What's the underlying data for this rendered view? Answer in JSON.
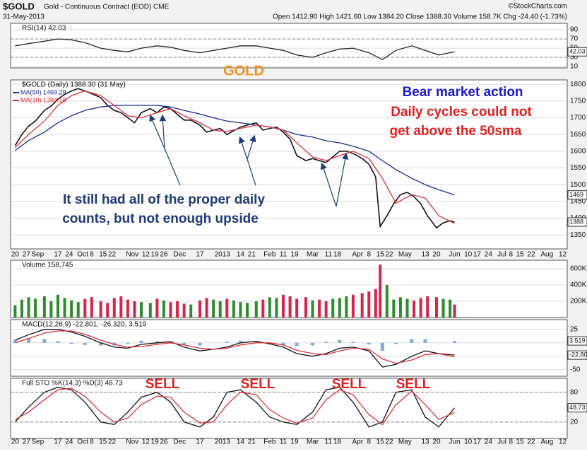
{
  "header": {
    "symbol": "$GOLD",
    "name": "Gold - Continuous Contract (EOD) CME",
    "date": "31-May-2013",
    "quote": "Open 1412.90 High 1421.60 Low 1384.20 Close 1388.30 Volume 158.7K Chg -24.40 (-1.73%)",
    "credit": "©StockCharts.com"
  },
  "chart_data": [
    {
      "type": "line",
      "title": "RSI(14) 42.03",
      "ylim": [
        7,
        104
      ],
      "yticks": [
        90,
        70,
        50,
        30,
        10
      ],
      "ref_lines": [
        70,
        30
      ],
      "x": [
        0,
        6,
        13,
        19,
        25,
        31,
        38,
        44,
        50,
        56,
        63,
        69,
        75,
        82,
        88,
        94,
        100,
        107,
        113,
        119,
        125,
        132,
        138,
        144,
        150,
        157,
        163,
        169,
        176,
        182,
        188,
        195
      ],
      "series": [
        {
          "name": "RSI(14)",
          "color": "#222222",
          "end_label": "42.03",
          "values": [
            55,
            60,
            65,
            70,
            68,
            62,
            50,
            45,
            42,
            50,
            55,
            52,
            45,
            40,
            45,
            50,
            55,
            55,
            50,
            45,
            35,
            30,
            40,
            48,
            50,
            40,
            25,
            45,
            55,
            45,
            35,
            42.03
          ]
        }
      ],
      "annotations": [
        {
          "text": "GOLD",
          "color": "#f0921e"
        }
      ]
    },
    {
      "type": "line",
      "title": "$GOLD (Daily) 1388.30 (31 May)",
      "ylim": [
        1308,
        1813
      ],
      "yticks": [
        1800,
        1750,
        1700,
        1650,
        1600,
        1550,
        1500,
        1450,
        1400,
        1350
      ],
      "xlim": [
        -2,
        245
      ],
      "xticks": [
        {
          "value": 0,
          "label": "20"
        },
        {
          "value": 5,
          "label": "27"
        },
        {
          "value": 10,
          "label": "Sep"
        },
        {
          "value": 19,
          "label": "17"
        },
        {
          "value": 24,
          "label": "24"
        },
        {
          "value": 30,
          "label": "Oct"
        },
        {
          "value": 34,
          "label": "8"
        },
        {
          "value": 39,
          "label": "15"
        },
        {
          "value": 43,
          "label": "22"
        },
        {
          "value": 52,
          "label": "Nov"
        },
        {
          "value": 58,
          "label": "12"
        },
        {
          "value": 62,
          "label": "19"
        },
        {
          "value": 66,
          "label": "26"
        },
        {
          "value": 73,
          "label": "Dec"
        },
        {
          "value": 82,
          "label": "17"
        },
        {
          "value": 92,
          "label": "2013"
        },
        {
          "value": 100,
          "label": "14"
        },
        {
          "value": 105,
          "label": "21"
        },
        {
          "value": 113,
          "label": "Feb"
        },
        {
          "value": 119,
          "label": "11"
        },
        {
          "value": 124,
          "label": "19"
        },
        {
          "value": 132,
          "label": "Mar"
        },
        {
          "value": 139,
          "label": "11"
        },
        {
          "value": 143,
          "label": "18"
        },
        {
          "value": 152,
          "label": "Apr"
        },
        {
          "value": 157,
          "label": "8"
        },
        {
          "value": 162,
          "label": "15"
        },
        {
          "value": 166,
          "label": "22"
        },
        {
          "value": 173,
          "label": "May"
        },
        {
          "value": 182,
          "label": "13"
        },
        {
          "value": 187,
          "label": "20"
        },
        {
          "value": 195,
          "label": "Jun"
        },
        {
          "value": 201,
          "label": "10"
        },
        {
          "value": 205,
          "label": "17"
        },
        {
          "value": 210,
          "label": "24"
        },
        {
          "value": 216,
          "label": "Jul"
        },
        {
          "value": 220,
          "label": "8"
        },
        {
          "value": 224,
          "label": "15"
        },
        {
          "value": 229,
          "label": "22"
        },
        {
          "value": 236,
          "label": "Aug"
        },
        {
          "value": 243,
          "label": "12"
        }
      ],
      "x": [
        0,
        3,
        6,
        9,
        13,
        16,
        19,
        22,
        25,
        28,
        31,
        34,
        38,
        41,
        44,
        47,
        50,
        53,
        56,
        60,
        63,
        66,
        69,
        72,
        75,
        78,
        82,
        85,
        88,
        91,
        94,
        97,
        100,
        103,
        107,
        110,
        113,
        116,
        119,
        122,
        125,
        129,
        132,
        135,
        138,
        141,
        144,
        147,
        150,
        154,
        157,
        160,
        162,
        165,
        168,
        171,
        174,
        177,
        180,
        183,
        187,
        190,
        193,
        195
      ],
      "series": [
        {
          "name": "$GOLD",
          "color": "#111111",
          "end_label": "1388",
          "values": [
            1617,
            1650,
            1675,
            1690,
            1722,
            1735,
            1755,
            1770,
            1780,
            1787,
            1780,
            1772,
            1760,
            1737,
            1722,
            1715,
            1700,
            1685,
            1715,
            1727,
            1715,
            1732,
            1727,
            1710,
            1693,
            1693,
            1678,
            1657,
            1663,
            1668,
            1650,
            1661,
            1672,
            1678,
            1685,
            1663,
            1668,
            1672,
            1657,
            1636,
            1587,
            1572,
            1578,
            1572,
            1566,
            1583,
            1600,
            1600,
            1593,
            1578,
            1561,
            1523,
            1375,
            1407,
            1443,
            1470,
            1477,
            1464,
            1443,
            1407,
            1371,
            1386,
            1392,
            1388.3
          ]
        },
        {
          "name": "MA(50) 1469.29",
          "color": "#1a2a9a",
          "end_label": "1469",
          "x": [
            0,
            6,
            13,
            19,
            25,
            31,
            38,
            44,
            50,
            56,
            63,
            69,
            75,
            82,
            88,
            94,
            100,
            107,
            113,
            119,
            125,
            132,
            138,
            144,
            150,
            157,
            163,
            169,
            176,
            182,
            188,
            195
          ],
          "values": [
            1602,
            1632,
            1657,
            1685,
            1706,
            1722,
            1732,
            1737,
            1737,
            1737,
            1737,
            1732,
            1722,
            1711,
            1700,
            1690,
            1685,
            1678,
            1672,
            1663,
            1650,
            1642,
            1631,
            1625,
            1615,
            1600,
            1572,
            1545,
            1519,
            1500,
            1485,
            1469.29
          ]
        },
        {
          "name": "MA(10) 1384.18",
          "color": "#e0303a",
          "x": [
            0,
            6,
            13,
            19,
            25,
            31,
            38,
            44,
            50,
            56,
            63,
            69,
            75,
            82,
            88,
            94,
            100,
            107,
            113,
            119,
            125,
            132,
            138,
            144,
            150,
            157,
            163,
            169,
            176,
            182,
            188,
            195
          ],
          "values": [
            1611,
            1650,
            1690,
            1737,
            1766,
            1780,
            1766,
            1737,
            1706,
            1700,
            1715,
            1727,
            1706,
            1685,
            1663,
            1659,
            1668,
            1678,
            1672,
            1663,
            1625,
            1583,
            1572,
            1587,
            1600,
            1578,
            1519,
            1445,
            1470,
            1460,
            1407,
            1384.18
          ]
        }
      ],
      "annotations": [
        {
          "text": "Bear market action",
          "color": "#1a1ad0"
        },
        {
          "text": "Daily cycles could not",
          "color": "#e02020"
        },
        {
          "text": "get above the 50sma",
          "color": "#e02020"
        },
        {
          "text": "It still had all of the proper daily",
          "color": "#1f3a78"
        },
        {
          "text": "counts, but not enough upside",
          "color": "#1f3a78"
        }
      ]
    },
    {
      "type": "bar",
      "title": "Volume 158,745",
      "ylim": [
        0,
        704000
      ],
      "yticks": [
        {
          "value": 600000,
          "label": "600K"
        },
        {
          "value": 400000,
          "label": "400K"
        },
        {
          "value": 200000,
          "label": "200K"
        }
      ],
      "up_color": "#2e8b2e",
      "down_color": "#d6244a",
      "x": [
        0,
        3,
        6,
        9,
        13,
        16,
        19,
        22,
        25,
        28,
        31,
        34,
        38,
        41,
        44,
        47,
        50,
        53,
        56,
        60,
        63,
        66,
        69,
        72,
        75,
        78,
        82,
        85,
        88,
        91,
        94,
        97,
        100,
        103,
        107,
        110,
        113,
        116,
        119,
        122,
        125,
        129,
        132,
        135,
        138,
        141,
        144,
        147,
        150,
        154,
        157,
        160,
        162,
        165,
        168,
        171,
        174,
        177,
        180,
        183,
        187,
        190,
        193,
        195
      ],
      "values": [
        150000,
        220000,
        250000,
        230000,
        260000,
        200000,
        280000,
        240000,
        210000,
        190000,
        230000,
        250000,
        200000,
        180000,
        240000,
        260000,
        220000,
        200000,
        190000,
        180000,
        230000,
        210000,
        190000,
        200000,
        170000,
        160000,
        210000,
        240000,
        220000,
        200000,
        230000,
        210000,
        190000,
        180000,
        200000,
        220000,
        250000,
        240000,
        280000,
        260000,
        230000,
        250000,
        210000,
        220000,
        200000,
        230000,
        240000,
        260000,
        280000,
        300000,
        320000,
        350000,
        650000,
        400000,
        220000,
        250000,
        230000,
        210000,
        240000,
        260000,
        250000,
        230000,
        220000,
        158745
      ]
    },
    {
      "type": "line",
      "title": "MACD(12,26,9) -22.801, -26.320, 3.519",
      "ylim": [
        -62,
        43
      ],
      "yticks": [
        25,
        0,
        -25,
        -50
      ],
      "x": [
        0,
        6,
        13,
        19,
        25,
        31,
        38,
        44,
        50,
        56,
        63,
        69,
        75,
        82,
        88,
        94,
        100,
        107,
        113,
        119,
        125,
        132,
        138,
        144,
        150,
        157,
        163,
        169,
        176,
        182,
        188,
        195
      ],
      "series": [
        {
          "name": "Histogram",
          "type": "bar",
          "color": "#5b9bd5",
          "end_label": "3.519",
          "values": [
            5,
            7,
            7,
            3,
            -2,
            -4,
            -5,
            -5,
            -2,
            4,
            3,
            2,
            -4,
            -5,
            0,
            2,
            4,
            3,
            -2,
            -4,
            -6,
            -5,
            2,
            5,
            2,
            -3,
            -15,
            -2,
            7,
            7,
            0,
            3.519
          ]
        },
        {
          "name": "MACD",
          "color": "#111111",
          "end_label": "-22.80",
          "values": [
            5,
            15,
            25,
            25,
            20,
            12,
            0,
            -8,
            -10,
            -3,
            0,
            2,
            -8,
            -15,
            -12,
            -8,
            0,
            3,
            -2,
            -8,
            -20,
            -25,
            -20,
            -10,
            -8,
            -15,
            -45,
            -40,
            -25,
            -15,
            -20,
            -22.801
          ]
        },
        {
          "name": "Signal",
          "color": "#e0303a",
          "values": [
            0,
            8,
            18,
            22,
            22,
            16,
            5,
            -3,
            -8,
            -7,
            -3,
            0,
            -4,
            -10,
            -12,
            -10,
            -4,
            0,
            0,
            -4,
            -14,
            -20,
            -22,
            -15,
            -10,
            -12,
            -30,
            -38,
            -32,
            -22,
            -20,
            -26.32
          ]
        }
      ]
    },
    {
      "type": "line",
      "title": "Full STO %K(14,3) %D(3) 48.73",
      "ylim": [
        -13,
        108
      ],
      "yticks": [
        80,
        20
      ],
      "ref_lines": [
        80,
        20
      ],
      "x": [
        0,
        6,
        13,
        19,
        25,
        31,
        38,
        44,
        50,
        56,
        63,
        69,
        75,
        82,
        88,
        94,
        100,
        107,
        113,
        119,
        125,
        132,
        138,
        144,
        150,
        157,
        163,
        169,
        176,
        182,
        188,
        195
      ],
      "series": [
        {
          "name": "%K",
          "color": "#111111",
          "end_label": "48.73",
          "values": [
            20,
            50,
            80,
            90,
            85,
            60,
            20,
            15,
            40,
            70,
            80,
            60,
            20,
            10,
            30,
            80,
            85,
            60,
            30,
            20,
            15,
            40,
            85,
            90,
            60,
            10,
            20,
            80,
            85,
            30,
            10,
            48.73
          ]
        },
        {
          "name": "%D",
          "color": "#e0303a",
          "values": [
            25,
            40,
            65,
            85,
            88,
            72,
            40,
            20,
            28,
            55,
            72,
            70,
            40,
            18,
            20,
            55,
            80,
            75,
            45,
            28,
            18,
            28,
            65,
            85,
            75,
            35,
            15,
            55,
            82,
            55,
            25,
            39.53
          ]
        }
      ],
      "annotations": [
        {
          "text": "SELL",
          "color": "#e02020"
        },
        {
          "text": "SELL",
          "color": "#e02020"
        },
        {
          "text": "SELL",
          "color": "#e02020"
        },
        {
          "text": "SELL",
          "color": "#e02020"
        }
      ]
    }
  ]
}
